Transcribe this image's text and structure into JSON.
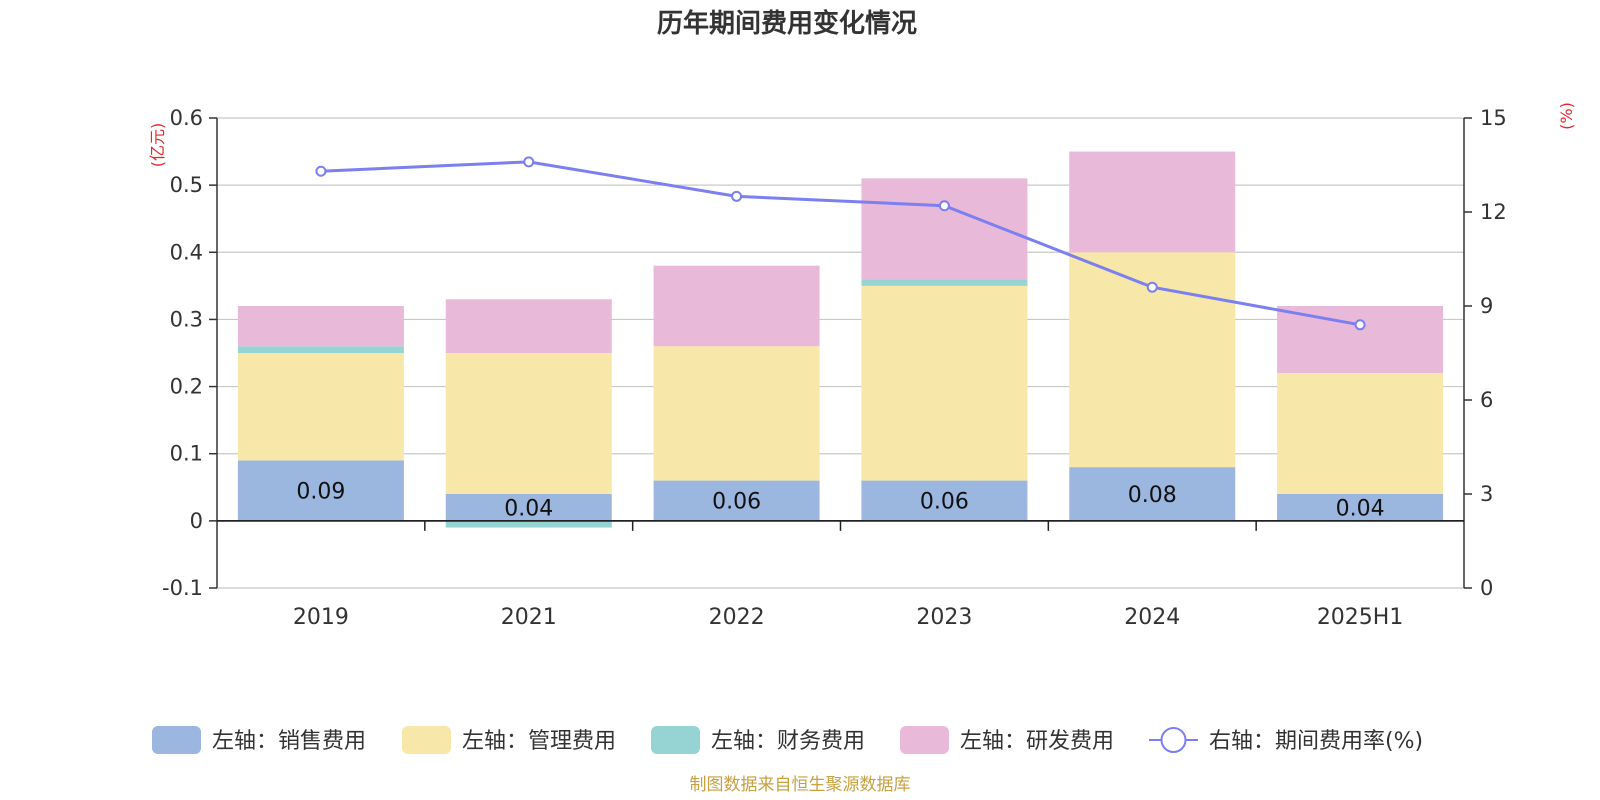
{
  "chart_data": {
    "type": "bar",
    "title": "历年期间费用变化情况",
    "categories": [
      "2019",
      "2021",
      "2022",
      "2023",
      "2024",
      "2025H1"
    ],
    "stacked": true,
    "series": [
      {
        "name": "左轴：销售费用",
        "axis": "left",
        "type": "bar",
        "color": "#9bb7e0",
        "values": [
          0.09,
          0.04,
          0.06,
          0.06,
          0.08,
          0.04
        ],
        "labels": [
          "0.09",
          "0.04",
          "0.06",
          "0.06",
          "0.08",
          "0.04"
        ]
      },
      {
        "name": "左轴：管理费用",
        "axis": "left",
        "type": "bar",
        "color": "#f7e7a8",
        "values": [
          0.16,
          0.21,
          0.2,
          0.29,
          0.32,
          0.18
        ]
      },
      {
        "name": "左轴：财务费用",
        "axis": "left",
        "type": "bar",
        "color": "#96d4d4",
        "values": [
          0.01,
          -0.01,
          0.0,
          0.01,
          0.0,
          0.0
        ]
      },
      {
        "name": "左轴：研发费用",
        "axis": "left",
        "type": "bar",
        "color": "#e8b9d9",
        "values": [
          0.06,
          0.08,
          0.12,
          0.15,
          0.15,
          0.1
        ]
      },
      {
        "name": "右轴：期间费用率(%)",
        "axis": "right",
        "type": "line",
        "color": "#7b7ff0",
        "values": [
          13.3,
          13.6,
          12.5,
          12.2,
          9.6,
          8.4
        ]
      }
    ],
    "left_axis": {
      "unit": "(亿元)",
      "ylim": [
        -0.1,
        0.6
      ],
      "ticks": [
        "0.6",
        "0.5",
        "0.4",
        "0.3",
        "0.2",
        "0.1",
        "0",
        "-0.1"
      ]
    },
    "right_axis": {
      "unit": "(%)",
      "ylim": [
        0,
        15
      ],
      "ticks": [
        "15",
        "12",
        "9",
        "6",
        "3",
        "0"
      ]
    },
    "grid": true,
    "legend": "bottom"
  },
  "source": {
    "text": "制图数据来自恒生聚源数据库",
    "color": "#c8a040"
  }
}
